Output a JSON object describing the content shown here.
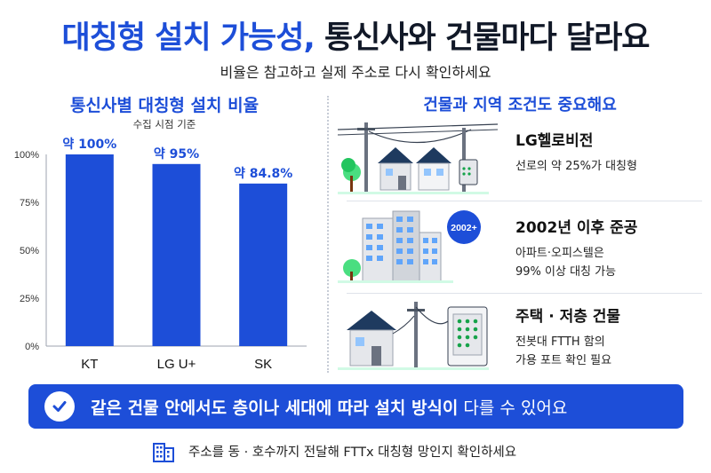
{
  "header": {
    "title_part1": "대칭형 설치 가능성,",
    "title_part2": "통신사와 건물마다 달라요",
    "subtitle": "비율은 참고하고 실제 주소로 다시 확인하세요"
  },
  "left_panel": {
    "title": "통신사별 대칭형 설치 비율",
    "note": "수집 시점 기준"
  },
  "chart_data": {
    "type": "bar",
    "title": "통신사별 대칭형 설치 비율",
    "subtitle": "수집 시점 기준",
    "categories": [
      "KT",
      "LG U+",
      "SK"
    ],
    "values": [
      100,
      95,
      84.8
    ],
    "data_labels": [
      "약 100%",
      "약 95%",
      "약 84.8%"
    ],
    "ylim": [
      0,
      100
    ],
    "yticks": [
      0,
      25,
      50,
      75,
      100
    ],
    "ytick_labels": [
      "0%",
      "25%",
      "50%",
      "75%",
      "100%"
    ],
    "grid": false,
    "bar_color": "#1d4ed8"
  },
  "right_panel": {
    "title": "건물과 지역 조건도 중요해요",
    "rows": [
      {
        "title": "LG헬로비전",
        "lines": [
          "선로의 약 25%가 대칭형"
        ],
        "icon": "houses-utility-pole-illustration"
      },
      {
        "title": "2002년 이후 준공",
        "badge": "2002+",
        "lines": [
          "아파트·오피스텔은",
          "99% 이상 대칭 가능"
        ],
        "icon": "apartment-buildings-illustration"
      },
      {
        "title": "주택 · 저층 건물",
        "lines": [
          "전봇대 FTTH 함의",
          "가용 포트 확인 필요"
        ],
        "icon": "house-ftth-box-illustration"
      }
    ]
  },
  "banner": {
    "text_bold": "같은 건물 안에서도 층이나 세대에 따라 설치 방식이",
    "text_light": " 다를 수 있어요",
    "icon": "check-circle-icon"
  },
  "footer": {
    "text": "주소를 동 · 호수까지 전달해 FTTx 대칭형 망인지 확인하세요",
    "icon": "building-icon"
  },
  "colors": {
    "accent": "#1d4ed8",
    "text": "#111827",
    "divider": "#c7ccd6"
  }
}
